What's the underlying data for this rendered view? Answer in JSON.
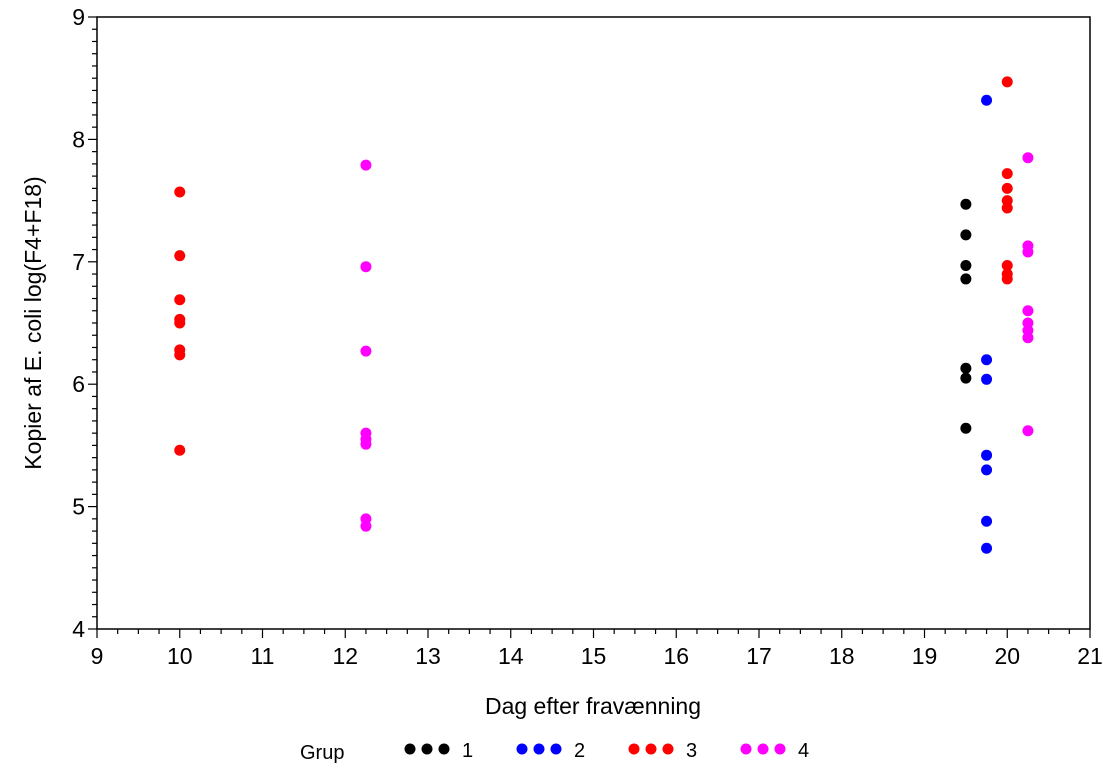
{
  "chart_data": {
    "type": "scatter",
    "title": "",
    "xlabel": "Dag efter fravænning",
    "ylabel": "Kopier af E. coli log(F4+F18)",
    "xlim": [
      9,
      21
    ],
    "ylim": [
      4,
      9
    ],
    "xticks": [
      "9",
      "10",
      "11",
      "12",
      "13",
      "14",
      "15",
      "16",
      "17",
      "18",
      "19",
      "20",
      "21"
    ],
    "yticks": [
      "4",
      "5",
      "6",
      "7",
      "8",
      "9"
    ],
    "grid": false,
    "legend": {
      "title": "Grup",
      "placement": "bottom"
    },
    "series": [
      {
        "name": "1",
        "color": "#000000",
        "points": [
          [
            19.5,
            7.47
          ],
          [
            19.5,
            7.22
          ],
          [
            19.5,
            6.97
          ],
          [
            19.5,
            6.86
          ],
          [
            19.5,
            6.13
          ],
          [
            19.5,
            6.05
          ],
          [
            19.5,
            5.64
          ]
        ]
      },
      {
        "name": "2",
        "color": "#0000ff",
        "points": [
          [
            19.75,
            8.32
          ],
          [
            19.75,
            6.2
          ],
          [
            19.75,
            6.04
          ],
          [
            19.75,
            5.42
          ],
          [
            19.75,
            5.3
          ],
          [
            19.75,
            4.88
          ],
          [
            19.75,
            4.66
          ]
        ]
      },
      {
        "name": "3",
        "color": "#ff0000",
        "points": [
          [
            10,
            7.57
          ],
          [
            10,
            7.05
          ],
          [
            10,
            6.69
          ],
          [
            10,
            6.53
          ],
          [
            10,
            6.5
          ],
          [
            10,
            6.28
          ],
          [
            10,
            6.24
          ],
          [
            10,
            5.46
          ],
          [
            20,
            8.47
          ],
          [
            20,
            7.72
          ],
          [
            20,
            7.6
          ],
          [
            20,
            7.5
          ],
          [
            20,
            7.44
          ],
          [
            20,
            6.97
          ],
          [
            20,
            6.9
          ],
          [
            20,
            6.86
          ]
        ]
      },
      {
        "name": "4",
        "color": "#ff00ff",
        "points": [
          [
            12.25,
            7.79
          ],
          [
            12.25,
            6.96
          ],
          [
            12.25,
            6.27
          ],
          [
            12.25,
            5.6
          ],
          [
            12.25,
            5.55
          ],
          [
            12.25,
            5.51
          ],
          [
            12.25,
            4.9
          ],
          [
            12.25,
            4.84
          ],
          [
            20.25,
            7.85
          ],
          [
            20.25,
            7.13
          ],
          [
            20.25,
            7.08
          ],
          [
            20.25,
            6.6
          ],
          [
            20.25,
            6.5
          ],
          [
            20.25,
            6.44
          ],
          [
            20.25,
            6.38
          ],
          [
            20.25,
            5.62
          ]
        ]
      }
    ]
  }
}
